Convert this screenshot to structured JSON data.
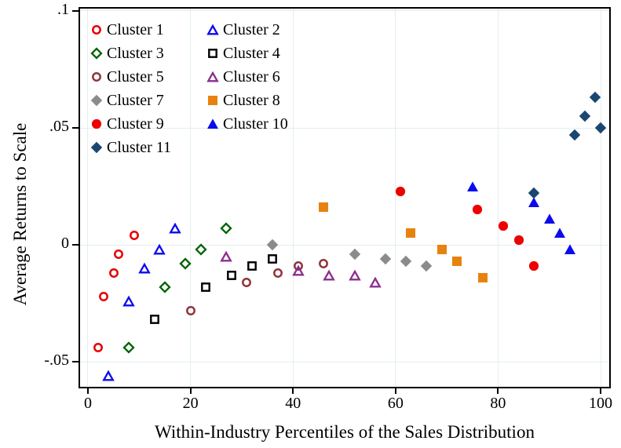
{
  "figure": {
    "background": "#ffffff",
    "axis_color": "#000000",
    "text_color": "#000000"
  },
  "chart_data": {
    "type": "scatter",
    "title": "",
    "xlabel": "Within-Industry Percentiles of the Sales Distribution",
    "ylabel": "Average Returns to Scale",
    "xlim": [
      -1.53,
      101.68
    ],
    "ylim": [
      -0.0607,
      0.101
    ],
    "x_ticks": [
      0,
      20,
      40,
      60,
      80,
      100
    ],
    "y_ticks": [
      {
        "v": 0.1,
        "label": ".1"
      },
      {
        "v": 0.05,
        "label": ".05"
      },
      {
        "v": 0,
        "label": "0"
      },
      {
        "v": -0.05,
        "label": "-.05"
      }
    ],
    "grid": true,
    "grid_color": "#e4eef1",
    "legend_position": "top-left",
    "legend_columns": 2,
    "series": [
      {
        "name": "Cluster 1",
        "marker": "circle",
        "fill": "open",
        "color": "#e60000",
        "points": [
          [
            2,
            -0.044
          ],
          [
            3,
            -0.022
          ],
          [
            5,
            -0.012
          ],
          [
            6,
            -0.004
          ],
          [
            9,
            0.004
          ]
        ]
      },
      {
        "name": "Cluster 2",
        "marker": "triangle",
        "fill": "open",
        "color": "#0b0bee",
        "points": [
          [
            4,
            -0.056
          ],
          [
            8,
            -0.024
          ],
          [
            11,
            -0.01
          ],
          [
            14,
            -0.002
          ],
          [
            17,
            0.007
          ]
        ]
      },
      {
        "name": "Cluster 3",
        "marker": "diamond",
        "fill": "open",
        "color": "#006400",
        "points": [
          [
            8,
            -0.044
          ],
          [
            15,
            -0.018
          ],
          [
            19,
            -0.008
          ],
          [
            22,
            -0.002
          ],
          [
            27,
            0.007
          ]
        ]
      },
      {
        "name": "Cluster 4",
        "marker": "square",
        "fill": "open",
        "color": "#000000",
        "points": [
          [
            13,
            -0.032
          ],
          [
            23,
            -0.018
          ],
          [
            28,
            -0.013
          ],
          [
            32,
            -0.009
          ],
          [
            36,
            -0.006
          ]
        ]
      },
      {
        "name": "Cluster 5",
        "marker": "circle",
        "fill": "open",
        "color": "#90353b",
        "points": [
          [
            20,
            -0.028
          ],
          [
            31,
            -0.016
          ],
          [
            37,
            -0.012
          ],
          [
            41,
            -0.009
          ],
          [
            46,
            -0.008
          ]
        ]
      },
      {
        "name": "Cluster 6",
        "marker": "triangle",
        "fill": "open",
        "color": "#8b2d90",
        "points": [
          [
            27,
            -0.005
          ],
          [
            41,
            -0.011
          ],
          [
            47,
            -0.013
          ],
          [
            52,
            -0.013
          ],
          [
            56,
            -0.016
          ]
        ]
      },
      {
        "name": "Cluster 7",
        "marker": "diamond",
        "fill": "solid",
        "color": "#8b8b8b",
        "points": [
          [
            36,
            0.0
          ],
          [
            52,
            -0.004
          ],
          [
            58,
            -0.006
          ],
          [
            62,
            -0.007
          ],
          [
            66,
            -0.009
          ]
        ]
      },
      {
        "name": "Cluster 8",
        "marker": "square",
        "fill": "solid",
        "color": "#e8820e",
        "points": [
          [
            46,
            0.016
          ],
          [
            63,
            0.005
          ],
          [
            69,
            -0.002
          ],
          [
            72,
            -0.007
          ],
          [
            77,
            -0.014
          ]
        ]
      },
      {
        "name": "Cluster 9",
        "marker": "circle",
        "fill": "solid",
        "color": "#ee0000",
        "points": [
          [
            61,
            0.023
          ],
          [
            76,
            0.015
          ],
          [
            81,
            0.008
          ],
          [
            84,
            0.002
          ],
          [
            87,
            -0.009
          ]
        ]
      },
      {
        "name": "Cluster 10",
        "marker": "triangle",
        "fill": "solid",
        "color": "#0b0bee",
        "points": [
          [
            75,
            0.025
          ],
          [
            87,
            0.018
          ],
          [
            90,
            0.011
          ],
          [
            92,
            0.005
          ],
          [
            94,
            -0.002
          ]
        ]
      },
      {
        "name": "Cluster 11",
        "marker": "diamond",
        "fill": "solid",
        "color": "#1a476f",
        "points": [
          [
            87,
            0.022
          ],
          [
            95,
            0.047
          ],
          [
            97,
            0.055
          ],
          [
            99,
            0.063
          ],
          [
            100,
            0.05
          ]
        ]
      }
    ]
  }
}
